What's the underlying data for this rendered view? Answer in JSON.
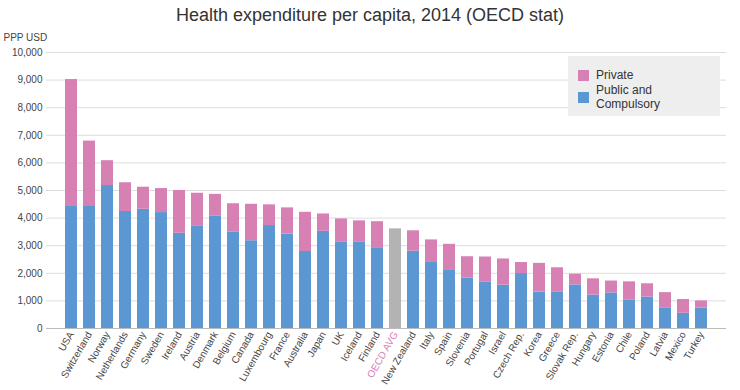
{
  "chart_data": {
    "type": "bar",
    "title": "Health expenditure per capita, 2014 (OECD stat)",
    "ylabel": "PPP USD",
    "categories": [
      "USA",
      "Switzerland",
      "Norway",
      "Netherlands",
      "Germany",
      "Sweden",
      "Ireland",
      "Austria",
      "Denmark",
      "Belgium",
      "Canada",
      "Luxembourg",
      "France",
      "Australia",
      "Japan",
      "UK",
      "Iceland",
      "Finland",
      "OECD AVG",
      "New Zealand",
      "Italy",
      "Spain",
      "Slovenia",
      "Portugal",
      "Israel",
      "Czech Rep.",
      "Korea",
      "Greece",
      "Slovak Rep.",
      "Hungary",
      "Estonia",
      "Chile",
      "Poland",
      "Latvia",
      "Mexico",
      "Turkey"
    ],
    "series": [
      {
        "name": "Public and Compulsory",
        "color": "#5b97d2",
        "values": [
          4450,
          4420,
          5180,
          4240,
          4320,
          4200,
          3450,
          3700,
          4080,
          3500,
          3180,
          3730,
          3420,
          2790,
          3520,
          3140,
          3140,
          2900,
          3610,
          2800,
          2420,
          2130,
          1830,
          1690,
          1570,
          1990,
          1320,
          1310,
          1580,
          1210,
          1290,
          1020,
          1140,
          750,
          550,
          740
        ],
        "colors": [
          "#5b97d2",
          "#5b97d2",
          "#5b97d2",
          "#5b97d2",
          "#5b97d2",
          "#5b97d2",
          "#5b97d2",
          "#5b97d2",
          "#5b97d2",
          "#5b97d2",
          "#5b97d2",
          "#5b97d2",
          "#5b97d2",
          "#5b97d2",
          "#5b97d2",
          "#5b97d2",
          "#5b97d2",
          "#5b97d2",
          "#b3b3b3",
          "#5b97d2",
          "#5b97d2",
          "#5b97d2",
          "#5b97d2",
          "#5b97d2",
          "#5b97d2",
          "#5b97d2",
          "#5b97d2",
          "#5b97d2",
          "#5b97d2",
          "#5b97d2",
          "#5b97d2",
          "#5b97d2",
          "#5b97d2",
          "#5b97d2",
          "#5b97d2",
          "#5b97d2"
        ]
      },
      {
        "name": "Private",
        "color": "#d680b4",
        "values": [
          4570,
          2370,
          900,
          1040,
          800,
          870,
          1550,
          1200,
          780,
          1020,
          1320,
          750,
          950,
          1420,
          630,
          830,
          760,
          970,
          null,
          740,
          790,
          920,
          770,
          900,
          950,
          400,
          1040,
          890,
          390,
          590,
          430,
          670,
          480,
          550,
          500,
          260
        ]
      }
    ],
    "stacked": true,
    "legend": "top-right",
    "grid": true,
    "ylim": [
      0,
      10000
    ],
    "yticks": [
      0,
      {
        "value": 1000,
        "label": "1,000"
      },
      {
        "value": 2000,
        "label": "2,000"
      },
      {
        "value": 3000,
        "label": "3,000"
      },
      {
        "value": 4000,
        "label": "4,000"
      },
      {
        "value": 5000,
        "label": "5,000"
      },
      {
        "value": 6000,
        "label": "6,000"
      },
      {
        "value": 7000,
        "label": "7,000"
      },
      {
        "value": 8000,
        "label": "8,000"
      },
      {
        "value": 9000,
        "label": "9,000"
      },
      {
        "value": 10000,
        "label": "10,000"
      }
    ]
  }
}
